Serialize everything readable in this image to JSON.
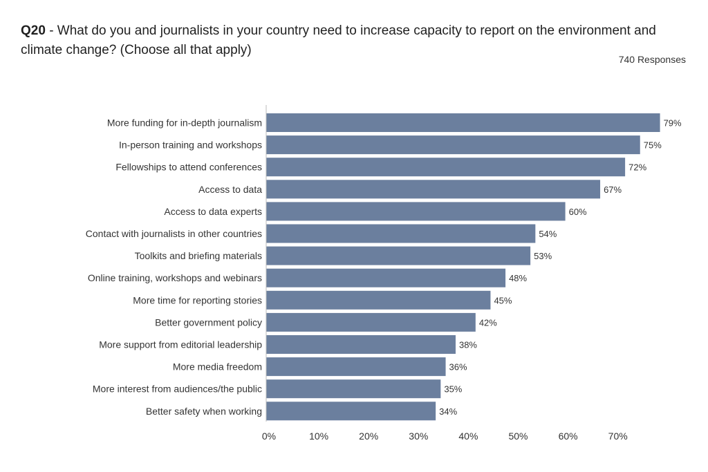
{
  "header": {
    "question_id": "Q20",
    "question_text": " - What do you and journalists in your country need to increase capacity to report on the environment and climate change? (Choose all that apply)",
    "responses": "740 Responses"
  },
  "colors": {
    "bar": "#6b7f9e",
    "axis": "#bbbbbb",
    "text": "#333333"
  },
  "chart_data": {
    "type": "bar",
    "orientation": "horizontal",
    "categories": [
      "More funding for in-depth journalism",
      "In-person training and workshops",
      "Fellowships to attend conferences",
      "Access to data",
      "Access to data experts",
      "Contact with journalists in other countries",
      "Toolkits and briefing materials",
      "Online training, workshops and webinars",
      "More time for reporting stories",
      "Better government policy",
      "More support from editorial leadership",
      "More media freedom",
      "More interest from audiences/the public",
      "Better safety when working"
    ],
    "values": [
      79,
      75,
      72,
      67,
      60,
      54,
      53,
      48,
      45,
      42,
      38,
      36,
      35,
      34
    ],
    "value_labels": [
      "79%",
      "75%",
      "72%",
      "67%",
      "60%",
      "54%",
      "53%",
      "48%",
      "45%",
      "42%",
      "38%",
      "36%",
      "35%",
      "34%"
    ],
    "xticks": [
      "0%",
      "10%",
      "20%",
      "30%",
      "40%",
      "50%",
      "60%",
      "70%"
    ],
    "xtick_values": [
      0,
      10,
      20,
      30,
      40,
      50,
      60,
      70
    ],
    "xlim": [
      0,
      80
    ],
    "grid": false
  }
}
